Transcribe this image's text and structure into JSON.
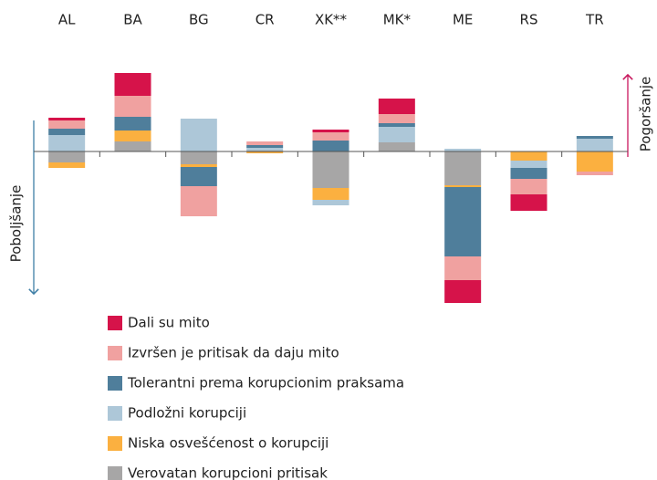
{
  "chart_data": {
    "type": "bar",
    "stacked": true,
    "diverging": true,
    "categories": [
      "AL",
      "BA",
      "BG",
      "CR",
      "XK**",
      "MK*",
      "ME",
      "RS",
      "TR"
    ],
    "series": [
      {
        "name": "Dali su mito",
        "color": "#d6134a",
        "values": [
          3,
          25,
          0,
          0,
          3,
          17,
          -25,
          -18,
          0
        ]
      },
      {
        "name": "Izvršen je pritisak da daju mito",
        "color": "#f0a1a0",
        "values": [
          9,
          23,
          -33,
          4,
          9,
          10,
          -26,
          -17,
          -4
        ]
      },
      {
        "name": "Tolerantni prema korupcionim praksama",
        "color": "#4f7e9b",
        "values": [
          7,
          15,
          -21,
          3,
          12,
          4,
          -76,
          -12,
          3
        ]
      },
      {
        "name": "Podložni korupciji",
        "color": "#adc7d8",
        "values": [
          18,
          0,
          36,
          3,
          -6,
          17,
          3,
          -8,
          14
        ]
      },
      {
        "name": "Niska osvešćenost o korupciji",
        "color": "#fbb040",
        "values": [
          -6,
          12,
          -3,
          -2,
          -13,
          0,
          -2,
          -10,
          -22
        ]
      },
      {
        "name": "Verovatan korupcioni pritisak",
        "color": "#a7a6a6",
        "values": [
          -12,
          11,
          -14,
          1,
          -40,
          10,
          -37,
          0,
          0
        ]
      }
    ],
    "ylim": [
      -180,
      120
    ],
    "annotations": {
      "up": "Pogoršanje",
      "down": "Poboljšanje"
    },
    "up_color": "#c8175d",
    "down_color": "#3f7fa6"
  }
}
